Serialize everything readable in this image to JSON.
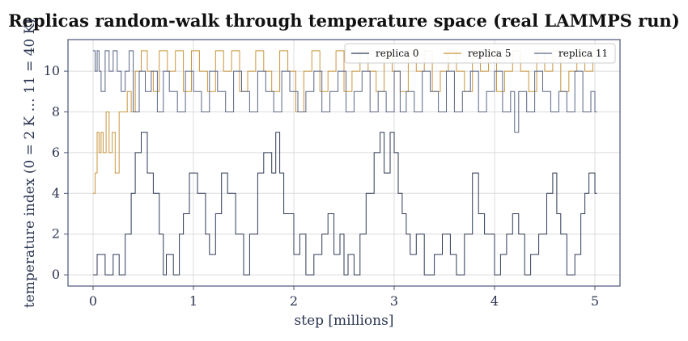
{
  "chart_data": {
    "type": "line",
    "title": "Replicas random-walk through temperature space (real LAMMPS run)",
    "xlabel": "step  [millions]",
    "ylabel": "temperature index (0 = 2 K … 11 = 40 K)",
    "xlim": [
      -0.25,
      5.25
    ],
    "ylim": [
      -0.55,
      11.55
    ],
    "xticks": [
      "0",
      "1",
      "2",
      "3",
      "4",
      "5"
    ],
    "yticks": [
      "0",
      "2",
      "4",
      "6",
      "8",
      "10"
    ],
    "grid": true,
    "legend": {
      "placement": "top-right",
      "columns": 3
    },
    "series": [
      {
        "name": "replica 0",
        "color": "#2f3a55",
        "x": [
          0.0,
          0.04,
          0.12,
          0.2,
          0.26,
          0.32,
          0.38,
          0.42,
          0.48,
          0.54,
          0.6,
          0.66,
          0.7,
          0.73,
          0.8,
          0.86,
          0.9,
          0.96,
          1.04,
          1.12,
          1.16,
          1.22,
          1.28,
          1.34,
          1.42,
          1.5,
          1.56,
          1.64,
          1.7,
          1.78,
          1.82,
          1.86,
          1.9,
          2.0,
          2.06,
          2.12,
          2.2,
          2.28,
          2.34,
          2.4,
          2.46,
          2.5,
          2.54,
          2.6,
          2.66,
          2.72,
          2.8,
          2.86,
          2.9,
          2.96,
          3.0,
          3.04,
          3.08,
          3.12,
          3.16,
          3.22,
          3.3,
          3.4,
          3.48,
          3.56,
          3.62,
          3.7,
          3.78,
          3.84,
          3.9,
          4.0,
          4.06,
          4.12,
          4.18,
          4.24,
          4.3,
          4.36,
          4.44,
          4.52,
          4.58,
          4.62,
          4.66,
          4.72,
          4.8,
          4.86,
          4.9,
          4.94,
          5.0
        ],
        "y": [
          0,
          1,
          0,
          1,
          0,
          2,
          4,
          6,
          7,
          5,
          4,
          2,
          0,
          1,
          0,
          2,
          3,
          5,
          4,
          2,
          1,
          3,
          5,
          4,
          2,
          0,
          2,
          5,
          6,
          5,
          7,
          5,
          3,
          1,
          2,
          0,
          1,
          2,
          3,
          1,
          2,
          0,
          1,
          0,
          2,
          4,
          6,
          7,
          5,
          7,
          6,
          4,
          3,
          2,
          1,
          2,
          0,
          1,
          2,
          1,
          0,
          2,
          5,
          3,
          2,
          0,
          1,
          2,
          3,
          2,
          0,
          1,
          2,
          4,
          5,
          3,
          2,
          0,
          1,
          3,
          4,
          5,
          4
        ]
      },
      {
        "name": "replica 5",
        "color": "#c8963e",
        "x": [
          0.0,
          0.02,
          0.04,
          0.06,
          0.08,
          0.1,
          0.13,
          0.16,
          0.19,
          0.22,
          0.26,
          0.3,
          0.34,
          0.38,
          0.42,
          0.48,
          0.54,
          0.6,
          0.66,
          0.74,
          0.82,
          0.9,
          0.98,
          1.06,
          1.14,
          1.22,
          1.3,
          1.38,
          1.46,
          1.54,
          1.62,
          1.7,
          1.78,
          1.86,
          1.94,
          2.02,
          2.1,
          2.18,
          2.26,
          2.34,
          2.42,
          2.5,
          2.58,
          2.66,
          2.74,
          2.82,
          2.9,
          2.98,
          3.06,
          3.14,
          3.22,
          3.3,
          3.38,
          3.46,
          3.54,
          3.62,
          3.7,
          3.78,
          3.86,
          3.94,
          4.02,
          4.1,
          4.18,
          4.26,
          4.34,
          4.42,
          4.5,
          4.58,
          4.66,
          4.74,
          4.82,
          4.9,
          4.98
        ],
        "y": [
          4,
          5,
          7,
          6,
          7,
          6,
          8,
          6,
          7,
          5,
          8,
          8,
          9,
          8,
          10,
          11,
          10,
          9,
          11,
          10,
          11,
          9,
          11,
          10,
          9,
          11,
          10,
          11,
          9,
          10,
          11,
          10,
          9,
          11,
          10,
          8,
          10,
          11,
          9,
          10,
          11,
          9,
          10,
          11,
          10,
          9,
          11,
          10,
          9,
          11,
          10,
          11,
          9,
          10,
          11,
          10,
          9,
          11,
          10,
          11,
          9,
          10,
          11,
          10,
          9,
          11,
          10,
          11,
          9,
          10,
          11,
          10,
          11
        ]
      },
      {
        "name": "replica 11",
        "color": "#5a6685",
        "x": [
          0.0,
          0.02,
          0.04,
          0.06,
          0.08,
          0.12,
          0.16,
          0.2,
          0.24,
          0.28,
          0.32,
          0.36,
          0.4,
          0.46,
          0.52,
          0.58,
          0.64,
          0.7,
          0.76,
          0.84,
          0.92,
          1.0,
          1.08,
          1.16,
          1.24,
          1.32,
          1.4,
          1.48,
          1.56,
          1.64,
          1.72,
          1.8,
          1.88,
          1.96,
          2.04,
          2.12,
          2.2,
          2.28,
          2.36,
          2.44,
          2.52,
          2.6,
          2.68,
          2.76,
          2.84,
          2.92,
          3.0,
          3.06,
          3.12,
          3.2,
          3.28,
          3.36,
          3.44,
          3.52,
          3.6,
          3.68,
          3.76,
          3.84,
          3.92,
          4.0,
          4.08,
          4.16,
          4.2,
          4.24,
          4.32,
          4.4,
          4.48,
          4.56,
          4.64,
          4.72,
          4.8,
          4.88,
          4.96,
          5.0
        ],
        "y": [
          11,
          10,
          11,
          10,
          9,
          11,
          10,
          11,
          10,
          9,
          10,
          11,
          8,
          10,
          9,
          10,
          8,
          10,
          9,
          8,
          10,
          9,
          8,
          10,
          9,
          8,
          10,
          9,
          8,
          10,
          9,
          8,
          10,
          9,
          8,
          9,
          10,
          8,
          9,
          10,
          8,
          9,
          10,
          8,
          9,
          8,
          10,
          8,
          9,
          8,
          10,
          9,
          8,
          10,
          8,
          9,
          10,
          8,
          9,
          10,
          8,
          9,
          7,
          9,
          8,
          10,
          9,
          8,
          9,
          8,
          10,
          8,
          9,
          8
        ]
      }
    ]
  }
}
